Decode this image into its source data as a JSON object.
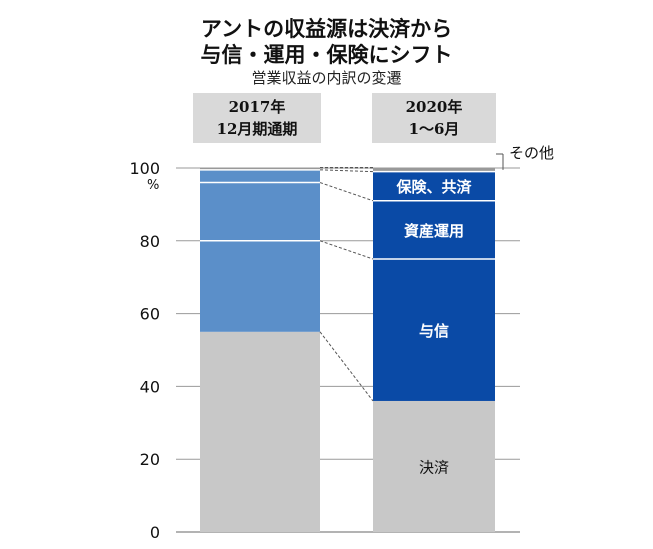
{
  "title_line1": "アントの収益源は決済から",
  "title_line2": "与信・運用・保険にシフト",
  "subtitle": "営業収益の内訳の変遷",
  "headers": [
    {
      "line1": "2017年",
      "line2": "12月期通期"
    },
    {
      "line1": "2020年",
      "line2": "1～6月"
    }
  ],
  "chart_data": {
    "type": "bar",
    "stacked": true,
    "y_unit": "%",
    "ylim": [
      0,
      100
    ],
    "yticks": [
      0,
      20,
      40,
      60,
      80,
      100
    ],
    "grid": true,
    "categories": [
      "2017年12月期通期",
      "2020年1～6月"
    ],
    "series": [
      {
        "name": "決済",
        "values": [
          55,
          36
        ],
        "colors": [
          "#c8c8c8",
          "#c8c8c8"
        ]
      },
      {
        "name": "与信",
        "values": [
          25,
          39
        ],
        "colors": [
          "#5b8fc9",
          "#0a4aa6"
        ]
      },
      {
        "name": "資産運用",
        "values": [
          16,
          16
        ],
        "colors": [
          "#5b8fc9",
          "#0a4aa6"
        ]
      },
      {
        "name": "保険、共済",
        "values": [
          3.5,
          8
        ],
        "colors": [
          "#5b8fc9",
          "#0a4aa6"
        ]
      },
      {
        "name": "その他",
        "values": [
          0.5,
          1
        ],
        "colors": [
          "#999999",
          "#999999"
        ]
      }
    ]
  }
}
